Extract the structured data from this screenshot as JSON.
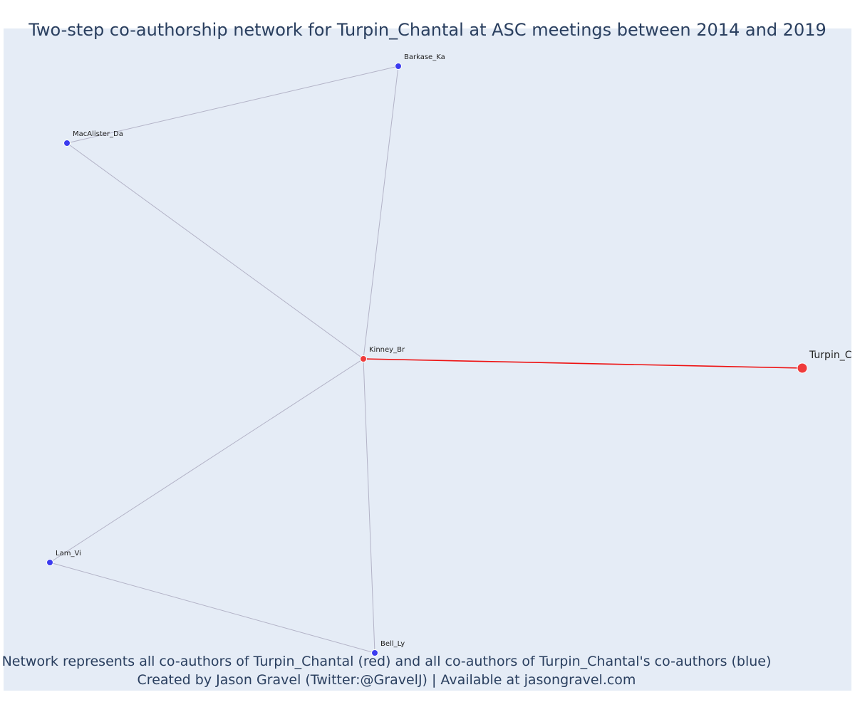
{
  "title": "Two-step co-authorship network for Turpin_Chantal at ASC meetings between 2014 and 2019",
  "caption": {
    "line1": "Network represents all co-authors of Turpin_Chantal (red) and all co-authors of Turpin_Chantal's co-authors (blue)",
    "line2": "Created by Jason Gravel (Twitter:@GravelJ) | Available at jasongravel.com"
  },
  "colors": {
    "plot_background": "#e5ecf6",
    "ego_node": "#ef3b3b",
    "alter_node": "#3b3bef",
    "ego_edge": "#ee1111",
    "other_edge": "#b3b3c7",
    "text": "#2a3f5f"
  },
  "network": {
    "nodes": [
      {
        "id": "Turpin_Chantal",
        "label": "Turpin_C",
        "group": "ego"
      },
      {
        "id": "Kinney_Br",
        "label": "Kinney_Br",
        "group": "coauthor"
      },
      {
        "id": "Barkase_Ka",
        "label": "Barkase_Ka",
        "group": "second_step"
      },
      {
        "id": "MacAlister_Da",
        "label": "MacAlister_Da",
        "group": "second_step"
      },
      {
        "id": "Lam_Vi",
        "label": "Lam_Vi",
        "group": "second_step"
      },
      {
        "id": "Bell_Ly",
        "label": "Bell_Ly",
        "group": "second_step"
      }
    ],
    "edges": [
      {
        "source": "Turpin_Chantal",
        "target": "Kinney_Br",
        "ego": true
      },
      {
        "source": "Kinney_Br",
        "target": "Barkase_Ka",
        "ego": false
      },
      {
        "source": "Kinney_Br",
        "target": "MacAlister_Da",
        "ego": false
      },
      {
        "source": "Kinney_Br",
        "target": "Lam_Vi",
        "ego": false
      },
      {
        "source": "Kinney_Br",
        "target": "Bell_Ly",
        "ego": false
      },
      {
        "source": "Barkase_Ka",
        "target": "MacAlister_Da",
        "ego": false
      },
      {
        "source": "Lam_Vi",
        "target": "Bell_Ly",
        "ego": false
      }
    ]
  }
}
